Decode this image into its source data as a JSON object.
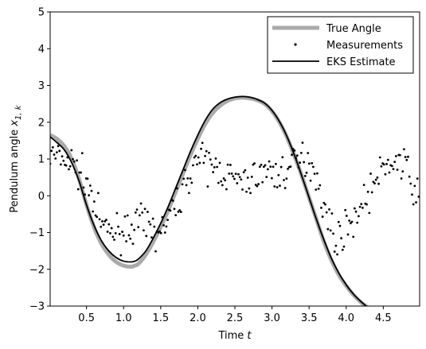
{
  "chart_data": {
    "type": "line",
    "title": "",
    "xlabel": {
      "text": "Time ",
      "var": "t"
    },
    "ylabel": {
      "text": "Pendulum angle ",
      "var": "x",
      "sub": "1, k"
    },
    "xlim": [
      0.01,
      4.99
    ],
    "ylim": [
      -3,
      5
    ],
    "xticks": [
      "0.5",
      "1.0",
      "1.5",
      "2.0",
      "2.5",
      "3.0",
      "3.5",
      "4.0",
      "4.5"
    ],
    "yticks": [
      "−3",
      "−2",
      "−1",
      "0",
      "1",
      "2",
      "3",
      "4",
      "5"
    ],
    "grid": false,
    "legend_position": "upper right",
    "series": [
      {
        "name": "True Angle",
        "style": "line",
        "color": "#aaaaaa",
        "x": [
          0.01,
          0.1,
          0.2,
          0.3,
          0.4,
          0.5,
          0.6,
          0.7,
          0.8,
          0.9,
          1.0,
          1.1,
          1.15,
          1.2,
          1.3,
          1.4,
          1.5,
          1.6,
          1.7,
          1.8,
          1.9,
          2.0,
          2.1,
          2.2,
          2.3,
          2.4,
          2.5,
          2.6,
          2.7,
          2.8,
          2.9,
          3.0,
          3.1,
          3.2,
          3.3,
          3.4,
          3.5,
          3.6,
          3.7,
          3.8,
          3.9,
          4.0,
          4.1,
          4.2,
          4.3
        ],
        "y": [
          1.65,
          1.55,
          1.35,
          1.0,
          0.45,
          -0.25,
          -0.85,
          -1.3,
          -1.6,
          -1.8,
          -1.9,
          -1.93,
          -1.9,
          -1.85,
          -1.6,
          -1.25,
          -0.85,
          -0.4,
          0.1,
          0.6,
          1.1,
          1.55,
          1.95,
          2.25,
          2.45,
          2.58,
          2.65,
          2.67,
          2.65,
          2.6,
          2.5,
          2.3,
          2.0,
          1.6,
          1.1,
          0.55,
          -0.05,
          -0.65,
          -1.25,
          -1.75,
          -2.15,
          -2.45,
          -2.7,
          -2.9,
          -3.05
        ]
      },
      {
        "name": "Measurements",
        "style": "scatter",
        "color": "#000000",
        "noise_seed": 7,
        "noise_amplitude": 0.45,
        "x_step": 0.018,
        "segments": [
          {
            "x": [
              0.01,
              0.3,
              0.5,
              0.7,
              0.9,
              1.2,
              1.5,
              1.75,
              1.95
            ],
            "y": [
              1.1,
              0.9,
              0.4,
              -0.85,
              -1.0,
              -0.75,
              -1.0,
              -0.1,
              0.9
            ]
          },
          {
            "x": [
              1.95,
              2.3,
              2.6,
              2.9,
              3.1,
              3.3,
              3.5,
              3.6,
              3.7,
              3.85,
              4.0,
              4.2,
              4.4,
              4.6,
              4.8,
              4.99
            ],
            "y": [
              1.0,
              0.7,
              0.3,
              0.7,
              0.55,
              0.9,
              1.0,
              0.6,
              -0.3,
              -1.2,
              -0.9,
              -0.3,
              0.4,
              0.95,
              0.8,
              -0.2
            ]
          }
        ]
      },
      {
        "name": "EKS Estimate",
        "style": "line",
        "color": "#000000",
        "x": [
          0.01,
          0.1,
          0.2,
          0.3,
          0.4,
          0.5,
          0.6,
          0.7,
          0.8,
          0.9,
          1.0,
          1.1,
          1.15,
          1.2,
          1.3,
          1.4,
          1.5,
          1.6,
          1.7,
          1.8,
          1.9,
          2.0,
          2.1,
          2.2,
          2.3,
          2.4,
          2.5,
          2.6,
          2.7,
          2.8,
          2.9,
          3.0,
          3.1,
          3.2,
          3.3,
          3.4,
          3.5,
          3.6,
          3.7,
          3.8,
          3.9,
          4.0,
          4.1,
          4.2,
          4.3
        ],
        "y": [
          1.6,
          1.45,
          1.25,
          0.9,
          0.4,
          -0.25,
          -0.8,
          -1.22,
          -1.5,
          -1.68,
          -1.78,
          -1.8,
          -1.78,
          -1.72,
          -1.5,
          -1.15,
          -0.75,
          -0.3,
          0.2,
          0.7,
          1.2,
          1.65,
          2.05,
          2.35,
          2.53,
          2.63,
          2.68,
          2.7,
          2.68,
          2.62,
          2.52,
          2.32,
          2.02,
          1.62,
          1.12,
          0.55,
          -0.05,
          -0.65,
          -1.2,
          -1.7,
          -2.1,
          -2.42,
          -2.68,
          -2.88,
          -3.05
        ]
      }
    ]
  }
}
